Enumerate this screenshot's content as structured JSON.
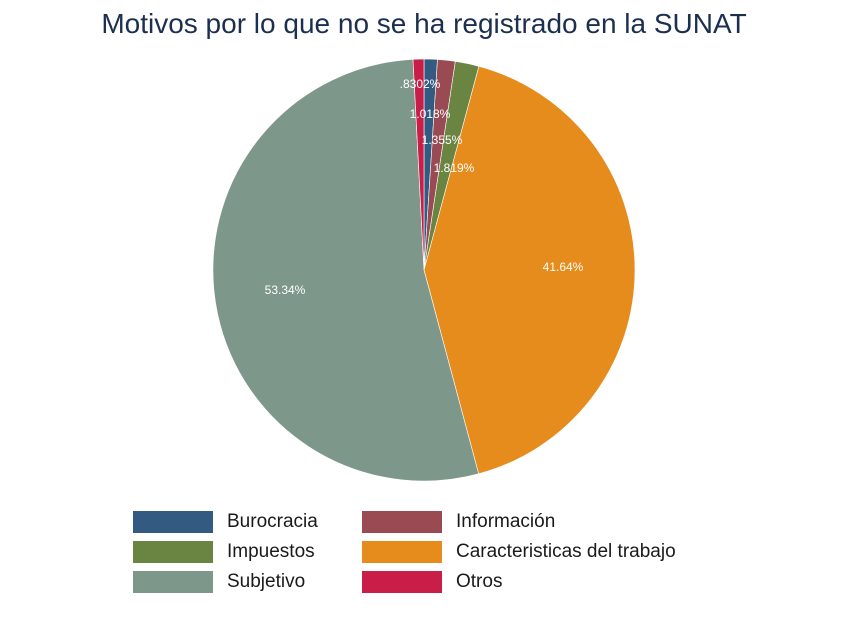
{
  "chart_data": {
    "type": "pie",
    "title": "Motivos por lo que no se ha registrado en la SUNAT",
    "slices": [
      {
        "name": "Burocracia",
        "value": 1.018,
        "label": "1.018%",
        "color": "#335a80"
      },
      {
        "name": "Información",
        "value": 1.355,
        "label": "1.355%",
        "color": "#9a4a53"
      },
      {
        "name": "Impuestos",
        "value": 1.819,
        "label": "1.819%",
        "color": "#6a8442"
      },
      {
        "name": "Caracteristicas del trabajo",
        "value": 41.64,
        "label": "41.64%",
        "color": "#e68c1c"
      },
      {
        "name": "Subjetivo",
        "value": 53.34,
        "label": "53.34%",
        "color": "#7e978b"
      },
      {
        "name": "Otros",
        "value": 0.8302,
        "label": ".8302%",
        "color": "#c81e48"
      }
    ],
    "legend_position": "bottom"
  }
}
